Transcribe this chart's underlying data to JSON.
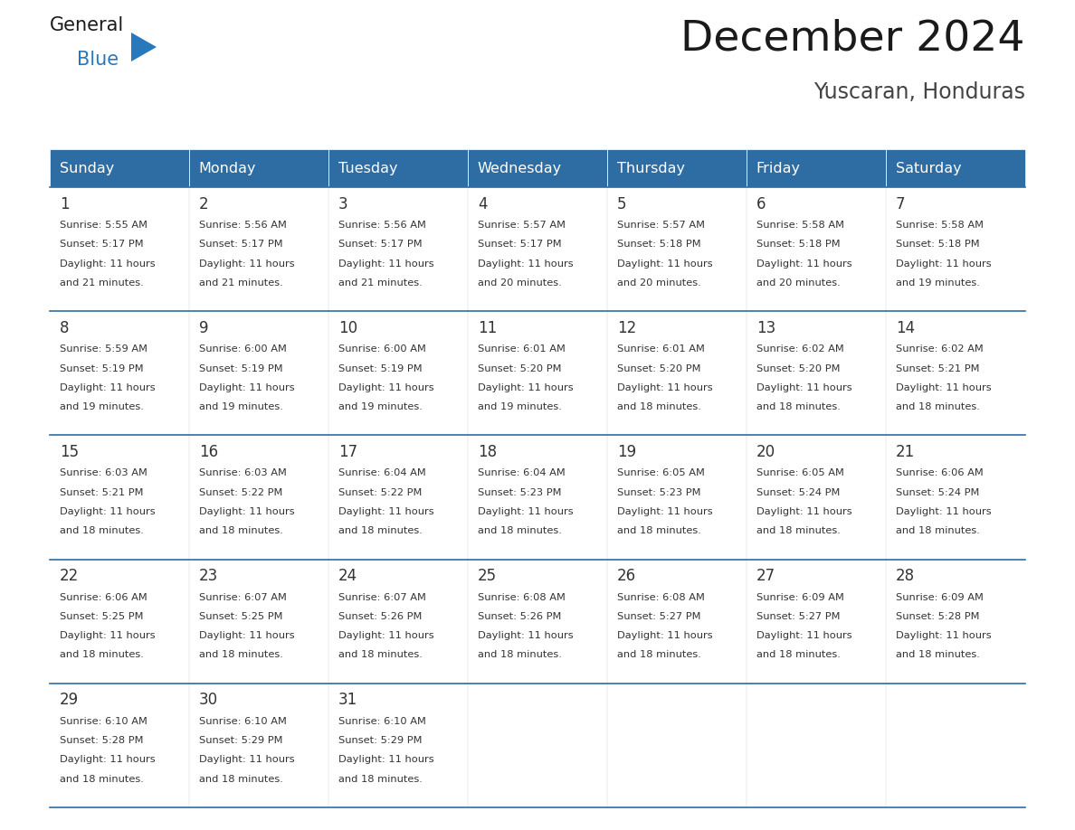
{
  "title": "December 2024",
  "subtitle": "Yuscaran, Honduras",
  "header_bg_color": "#2E6DA4",
  "header_text_color": "#FFFFFF",
  "cell_bg_color": "#FFFFFF",
  "cell_text_color": "#333333",
  "border_color": "#2E6DA4",
  "day_headers": [
    "Sunday",
    "Monday",
    "Tuesday",
    "Wednesday",
    "Thursday",
    "Friday",
    "Saturday"
  ],
  "title_color": "#1a1a1a",
  "subtitle_color": "#444444",
  "logo_general_color": "#1a1a1a",
  "logo_blue_color": "#2779BD",
  "weeks": [
    [
      {
        "day": 1,
        "sunrise": "5:55 AM",
        "sunset": "5:17 PM",
        "daylight_min": "21"
      },
      {
        "day": 2,
        "sunrise": "5:56 AM",
        "sunset": "5:17 PM",
        "daylight_min": "21"
      },
      {
        "day": 3,
        "sunrise": "5:56 AM",
        "sunset": "5:17 PM",
        "daylight_min": "21"
      },
      {
        "day": 4,
        "sunrise": "5:57 AM",
        "sunset": "5:17 PM",
        "daylight_min": "20"
      },
      {
        "day": 5,
        "sunrise": "5:57 AM",
        "sunset": "5:18 PM",
        "daylight_min": "20"
      },
      {
        "day": 6,
        "sunrise": "5:58 AM",
        "sunset": "5:18 PM",
        "daylight_min": "20"
      },
      {
        "day": 7,
        "sunrise": "5:58 AM",
        "sunset": "5:18 PM",
        "daylight_min": "19"
      }
    ],
    [
      {
        "day": 8,
        "sunrise": "5:59 AM",
        "sunset": "5:19 PM",
        "daylight_min": "19"
      },
      {
        "day": 9,
        "sunrise": "6:00 AM",
        "sunset": "5:19 PM",
        "daylight_min": "19"
      },
      {
        "day": 10,
        "sunrise": "6:00 AM",
        "sunset": "5:19 PM",
        "daylight_min": "19"
      },
      {
        "day": 11,
        "sunrise": "6:01 AM",
        "sunset": "5:20 PM",
        "daylight_min": "19"
      },
      {
        "day": 12,
        "sunrise": "6:01 AM",
        "sunset": "5:20 PM",
        "daylight_min": "18"
      },
      {
        "day": 13,
        "sunrise": "6:02 AM",
        "sunset": "5:20 PM",
        "daylight_min": "18"
      },
      {
        "day": 14,
        "sunrise": "6:02 AM",
        "sunset": "5:21 PM",
        "daylight_min": "18"
      }
    ],
    [
      {
        "day": 15,
        "sunrise": "6:03 AM",
        "sunset": "5:21 PM",
        "daylight_min": "18"
      },
      {
        "day": 16,
        "sunrise": "6:03 AM",
        "sunset": "5:22 PM",
        "daylight_min": "18"
      },
      {
        "day": 17,
        "sunrise": "6:04 AM",
        "sunset": "5:22 PM",
        "daylight_min": "18"
      },
      {
        "day": 18,
        "sunrise": "6:04 AM",
        "sunset": "5:23 PM",
        "daylight_min": "18"
      },
      {
        "day": 19,
        "sunrise": "6:05 AM",
        "sunset": "5:23 PM",
        "daylight_min": "18"
      },
      {
        "day": 20,
        "sunrise": "6:05 AM",
        "sunset": "5:24 PM",
        "daylight_min": "18"
      },
      {
        "day": 21,
        "sunrise": "6:06 AM",
        "sunset": "5:24 PM",
        "daylight_min": "18"
      }
    ],
    [
      {
        "day": 22,
        "sunrise": "6:06 AM",
        "sunset": "5:25 PM",
        "daylight_min": "18"
      },
      {
        "day": 23,
        "sunrise": "6:07 AM",
        "sunset": "5:25 PM",
        "daylight_min": "18"
      },
      {
        "day": 24,
        "sunrise": "6:07 AM",
        "sunset": "5:26 PM",
        "daylight_min": "18"
      },
      {
        "day": 25,
        "sunrise": "6:08 AM",
        "sunset": "5:26 PM",
        "daylight_min": "18"
      },
      {
        "day": 26,
        "sunrise": "6:08 AM",
        "sunset": "5:27 PM",
        "daylight_min": "18"
      },
      {
        "day": 27,
        "sunrise": "6:09 AM",
        "sunset": "5:27 PM",
        "daylight_min": "18"
      },
      {
        "day": 28,
        "sunrise": "6:09 AM",
        "sunset": "5:28 PM",
        "daylight_min": "18"
      }
    ],
    [
      {
        "day": 29,
        "sunrise": "6:10 AM",
        "sunset": "5:28 PM",
        "daylight_min": "18"
      },
      {
        "day": 30,
        "sunrise": "6:10 AM",
        "sunset": "5:29 PM",
        "daylight_min": "18"
      },
      {
        "day": 31,
        "sunrise": "6:10 AM",
        "sunset": "5:29 PM",
        "daylight_min": "18"
      },
      null,
      null,
      null,
      null
    ]
  ]
}
